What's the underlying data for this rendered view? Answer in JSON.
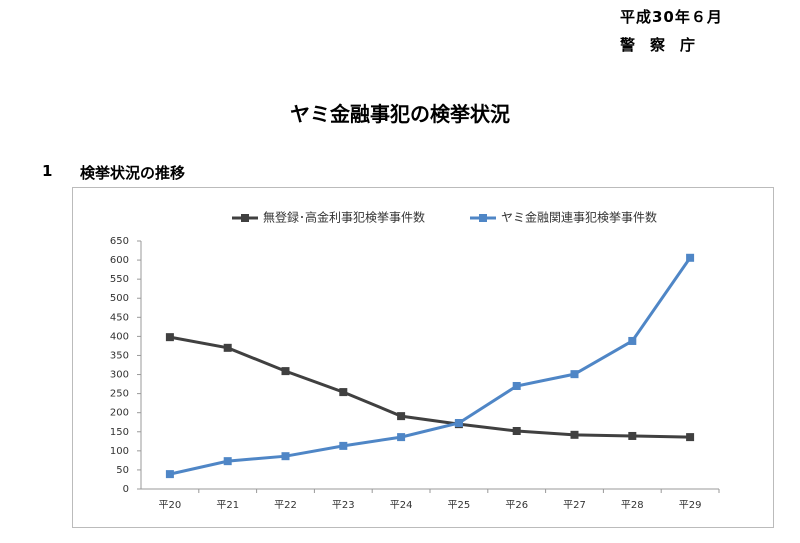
{
  "header": {
    "date": "平成30年６月",
    "agency": "警　察　庁"
  },
  "title": "ヤミ金融事犯の検挙状況",
  "section": {
    "number": "1",
    "title": "検挙状況の推移"
  },
  "chart_data": {
    "type": "line",
    "categories": [
      "平20",
      "平21",
      "平22",
      "平23",
      "平24",
      "平25",
      "平26",
      "平27",
      "平28",
      "平29"
    ],
    "series": [
      {
        "name": "無登録･高金利事犯検挙事件数",
        "color": "#404040",
        "values": [
          398,
          370,
          309,
          254,
          191,
          170,
          152,
          142,
          139,
          136
        ]
      },
      {
        "name": "ヤミ金融関連事犯検挙事件数",
        "color": "#4f86c6",
        "values": [
          39,
          73,
          86,
          113,
          136,
          173,
          270,
          301,
          388,
          606
        ]
      }
    ],
    "ylim": [
      0,
      650
    ],
    "yticks": [
      0,
      50,
      100,
      150,
      200,
      250,
      300,
      350,
      400,
      450,
      500,
      550,
      600,
      650
    ],
    "legend": "top"
  }
}
